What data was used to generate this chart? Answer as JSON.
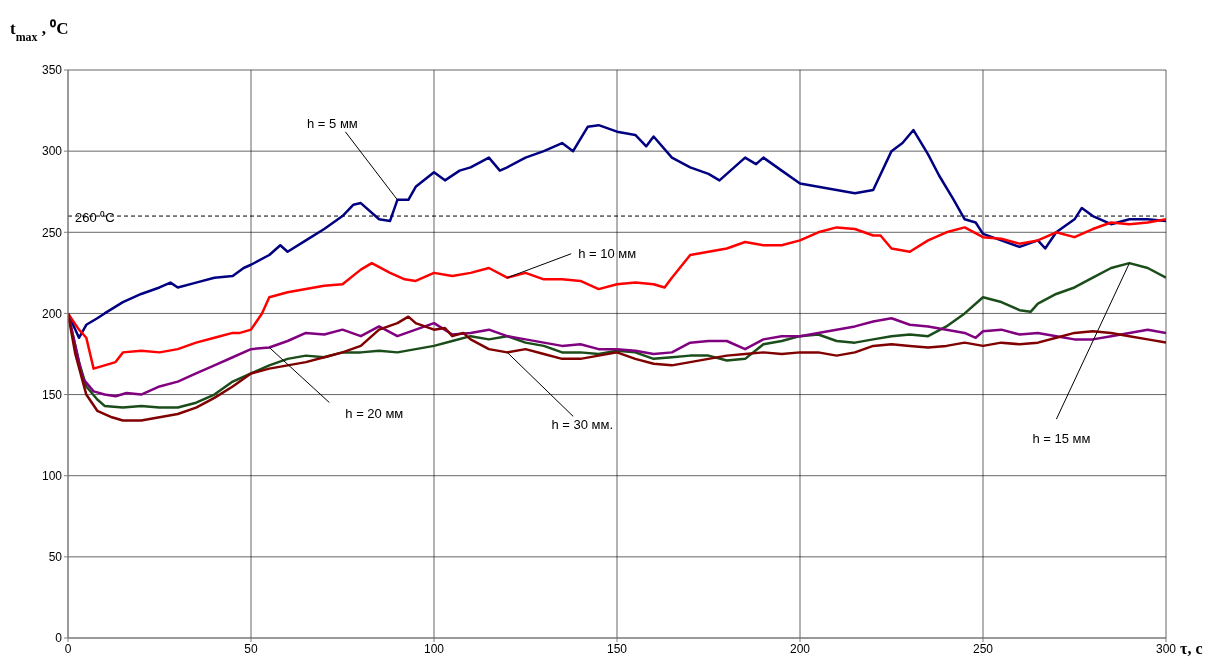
{
  "chart_data": {
    "type": "line",
    "ylabel": "t$_{max}$, ⁰C",
    "xlabel": "τ, с",
    "xlim": [
      0,
      300
    ],
    "xticks": [
      0,
      50,
      100,
      150,
      200,
      250,
      300
    ],
    "ylim": [
      0,
      350
    ],
    "yticks": [
      0,
      50,
      100,
      150,
      200,
      250,
      300,
      350
    ],
    "grid": true,
    "marker": "none",
    "line_style": "solid",
    "ref_lines": [
      {
        "axis": "y",
        "value": 260,
        "label": "260 ⁰C",
        "line_style": "dashed",
        "color": "#000000"
      }
    ],
    "annotations": [
      {
        "text": "h = 5 мм",
        "x": 90,
        "y": 270
      },
      {
        "text": "h = 10 мм",
        "x": 120,
        "y": 222
      },
      {
        "text": "h = 15 мм",
        "x": 290,
        "y": 231
      },
      {
        "text": "h = 20 мм",
        "x": 55,
        "y": 179
      },
      {
        "text": "h = 30 мм.",
        "x": 120,
        "y": 176
      }
    ],
    "series": [
      {
        "color": "#000080",
        "x": [
          0,
          3,
          5,
          8,
          10,
          15,
          20,
          25,
          28,
          30,
          35,
          40,
          45,
          48,
          50,
          55,
          58,
          60,
          65,
          70,
          75,
          78,
          80,
          85,
          88,
          90,
          93,
          95,
          100,
          103,
          107,
          110,
          115,
          118,
          120,
          125,
          130,
          135,
          138,
          142,
          145,
          150,
          155,
          158,
          160,
          165,
          170,
          175,
          178,
          182,
          185,
          188,
          190,
          195,
          200,
          205,
          210,
          215,
          220,
          225,
          228,
          231,
          235,
          238,
          242,
          245,
          248,
          250,
          255,
          260,
          265,
          267,
          270,
          275,
          277,
          280,
          285,
          290,
          295,
          300
        ],
        "values": [
          200,
          185,
          193,
          197,
          200,
          207,
          212,
          216,
          219,
          216,
          219,
          222,
          223,
          228,
          230,
          236,
          242,
          238,
          245,
          252,
          260,
          267,
          268,
          258,
          257,
          270,
          270,
          278,
          287,
          282,
          288,
          290,
          296,
          288,
          290,
          296,
          300,
          305,
          300,
          315,
          316,
          312,
          310,
          303,
          309,
          296,
          290,
          286,
          282,
          290,
          296,
          292,
          296,
          288,
          280,
          278,
          276,
          274,
          276,
          300,
          305,
          313,
          298,
          285,
          270,
          258,
          256,
          249,
          245,
          241,
          245,
          240,
          250,
          258,
          265,
          260,
          255,
          258,
          258,
          257
        ]
      },
      {
        "color": "#ff0000",
        "x": [
          0,
          3,
          5,
          7,
          10,
          13,
          15,
          20,
          25,
          30,
          35,
          40,
          45,
          47,
          50,
          53,
          55,
          60,
          65,
          70,
          75,
          80,
          83,
          88,
          92,
          95,
          100,
          105,
          110,
          115,
          120,
          125,
          130,
          135,
          140,
          145,
          150,
          155,
          160,
          163,
          165,
          170,
          175,
          180,
          185,
          190,
          195,
          200,
          205,
          210,
          215,
          220,
          222,
          225,
          230,
          235,
          240,
          245,
          250,
          255,
          260,
          265,
          270,
          275,
          280,
          285,
          290,
          295,
          300
        ],
        "values": [
          200,
          190,
          185,
          166,
          168,
          170,
          176,
          177,
          176,
          178,
          182,
          185,
          188,
          188,
          190,
          200,
          210,
          213,
          215,
          217,
          218,
          227,
          231,
          225,
          221,
          220,
          225,
          223,
          225,
          228,
          222,
          225,
          221,
          221,
          220,
          215,
          218,
          219,
          218,
          216,
          222,
          236,
          238,
          240,
          244,
          242,
          242,
          245,
          250,
          253,
          252,
          248,
          248,
          240,
          238,
          245,
          250,
          253,
          247,
          246,
          243,
          245,
          250,
          247,
          252,
          256,
          255,
          256,
          258
        ]
      },
      {
        "color": "#1a4d1a",
        "x": [
          0,
          3,
          5,
          8,
          10,
          15,
          20,
          25,
          30,
          35,
          40,
          45,
          50,
          55,
          60,
          65,
          70,
          75,
          80,
          85,
          90,
          95,
          100,
          105,
          110,
          115,
          120,
          125,
          130,
          135,
          140,
          145,
          150,
          155,
          160,
          165,
          170,
          175,
          180,
          185,
          190,
          195,
          200,
          205,
          210,
          215,
          220,
          225,
          230,
          235,
          240,
          245,
          250,
          255,
          260,
          263,
          265,
          270,
          275,
          280,
          285,
          290,
          295,
          300
        ],
        "values": [
          200,
          170,
          155,
          147,
          143,
          142,
          143,
          142,
          142,
          145,
          150,
          158,
          163,
          168,
          172,
          174,
          173,
          176,
          176,
          177,
          176,
          178,
          180,
          183,
          186,
          184,
          186,
          182,
          180,
          176,
          176,
          175,
          177,
          176,
          172,
          173,
          174,
          174,
          171,
          172,
          181,
          183,
          186,
          187,
          183,
          182,
          184,
          186,
          187,
          186,
          192,
          200,
          210,
          207,
          202,
          201,
          206,
          212,
          216,
          222,
          228,
          231,
          228,
          222
        ]
      },
      {
        "color": "#800080",
        "x": [
          0,
          2,
          4,
          7,
          10,
          13,
          16,
          20,
          25,
          30,
          35,
          40,
          45,
          50,
          55,
          60,
          65,
          70,
          75,
          80,
          85,
          90,
          95,
          100,
          105,
          110,
          115,
          120,
          125,
          130,
          135,
          140,
          145,
          150,
          155,
          160,
          165,
          170,
          175,
          180,
          185,
          190,
          195,
          200,
          205,
          210,
          215,
          220,
          225,
          230,
          235,
          240,
          245,
          248,
          250,
          255,
          260,
          265,
          270,
          275,
          280,
          285,
          290,
          295,
          300
        ],
        "values": [
          200,
          180,
          160,
          152,
          150,
          149,
          151,
          150,
          155,
          158,
          163,
          168,
          173,
          178,
          179,
          183,
          188,
          187,
          190,
          186,
          192,
          186,
          190,
          194,
          187,
          188,
          190,
          186,
          184,
          182,
          180,
          181,
          178,
          178,
          177,
          175,
          176,
          182,
          183,
          183,
          178,
          184,
          186,
          186,
          188,
          190,
          192,
          195,
          197,
          193,
          192,
          190,
          188,
          185,
          189,
          190,
          187,
          188,
          186,
          184,
          184,
          186,
          188,
          190,
          188
        ]
      },
      {
        "color": "#800000",
        "x": [
          0,
          2,
          5,
          8,
          12,
          15,
          20,
          25,
          30,
          35,
          40,
          45,
          50,
          55,
          60,
          65,
          70,
          75,
          80,
          85,
          90,
          93,
          95,
          100,
          103,
          105,
          108,
          110,
          115,
          120,
          125,
          130,
          135,
          140,
          145,
          150,
          155,
          160,
          165,
          170,
          175,
          180,
          185,
          190,
          195,
          200,
          205,
          210,
          215,
          220,
          225,
          230,
          235,
          240,
          245,
          250,
          255,
          260,
          265,
          270,
          275,
          280,
          285,
          290,
          295,
          300
        ],
        "values": [
          200,
          175,
          150,
          140,
          136,
          134,
          134,
          136,
          138,
          142,
          148,
          155,
          163,
          166,
          168,
          170,
          173,
          176,
          180,
          190,
          194,
          198,
          194,
          190,
          191,
          186,
          188,
          184,
          178,
          176,
          178,
          175,
          172,
          172,
          174,
          176,
          172,
          169,
          168,
          170,
          172,
          174,
          175,
          176,
          175,
          176,
          176,
          174,
          176,
          180,
          181,
          180,
          179,
          180,
          182,
          180,
          182,
          181,
          182,
          185,
          188,
          189,
          188,
          186,
          184,
          182
        ]
      }
    ]
  }
}
